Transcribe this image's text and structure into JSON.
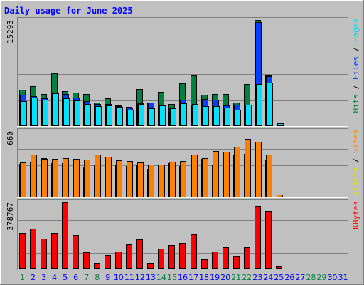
{
  "chart_data": {
    "type": "bar",
    "title": "Daily usage for June 2025",
    "days": [
      "1",
      "2",
      "3",
      "4",
      "5",
      "6",
      "7",
      "8",
      "9",
      "10",
      "11",
      "12",
      "13",
      "14",
      "15",
      "16",
      "17",
      "18",
      "19",
      "20",
      "21",
      "22",
      "23",
      "24",
      "25",
      "26",
      "27",
      "28",
      "29",
      "30",
      "31"
    ],
    "weekend_days": [
      "1",
      "7",
      "8",
      "14",
      "15",
      "21",
      "22",
      "28",
      "29"
    ],
    "panels": [
      {
        "id": "hits-files-pages",
        "ymax": 15293,
        "ymax_label": "15293",
        "legend": [
          {
            "text": "Hits",
            "color": "#008040"
          },
          {
            "text": " / ",
            "color": "#000000"
          },
          {
            "text": "Files",
            "color": "#0040ff"
          },
          {
            "text": " / ",
            "color": "#000000"
          },
          {
            "text": "Pages",
            "color": "#00e0ff"
          }
        ],
        "series": [
          {
            "name": "Hits",
            "color": "#008040",
            "values": [
              5200,
              5700,
              4500,
              7500,
              5000,
              4750,
              4500,
              3300,
              3900,
              2900,
              2700,
              5250,
              3350,
              4900,
              3100,
              6100,
              7300,
              4400,
              4500,
              4500,
              3300,
              6000,
              15293,
              7300,
              0,
              0,
              0,
              0,
              0,
              0,
              0
            ]
          },
          {
            "name": "Files",
            "color": "#0040ff",
            "values": [
              4400,
              4200,
              3900,
              4700,
              4500,
              4000,
              3500,
              3100,
              3100,
              2800,
              2600,
              3200,
              3300,
              3000,
              2500,
              3700,
              3000,
              3800,
              3700,
              2900,
              3000,
              3000,
              15000,
              7100,
              0,
              0,
              0,
              0,
              0,
              0,
              0
            ]
          },
          {
            "name": "Pages",
            "color": "#00e0ff",
            "values": [
              3500,
              4000,
              3700,
              4600,
              3900,
              3600,
              3100,
              2800,
              2900,
              2700,
              2300,
              3100,
              2500,
              2900,
              2500,
              3200,
              3100,
              2800,
              2800,
              2600,
              2300,
              3000,
              6000,
              6200,
              350,
              0,
              0,
              0,
              0,
              0,
              0
            ]
          }
        ]
      },
      {
        "id": "visits-sites",
        "ymax": 660,
        "ymax_label": "660",
        "legend": [
          {
            "text": "Visits",
            "color": "#e0e000"
          },
          {
            "text": " / ",
            "color": "#000000"
          },
          {
            "text": "Sites",
            "color": "#ff8000"
          }
        ],
        "series": [
          {
            "name": "Visits",
            "color": "#ffff00",
            "values": [
              330,
              345,
              390,
              340,
              335,
              335,
              300,
              325,
              305,
              320,
              305,
              315,
              280,
              325,
              340,
              305,
              375,
              380,
              320,
              390,
              425,
              430,
              385,
              370,
              0,
              0,
              0,
              0,
              0,
              0,
              0
            ]
          },
          {
            "name": "Sites",
            "color": "#ff8000",
            "values": [
              345,
              420,
              380,
              380,
              390,
              380,
              370,
              420,
              400,
              365,
              360,
              345,
              320,
              320,
              355,
              360,
              425,
              390,
              460,
              450,
              500,
              580,
              550,
              420,
              20,
              0,
              0,
              0,
              0,
              0,
              0
            ]
          }
        ]
      },
      {
        "id": "kbytes",
        "ymax": 378767,
        "ymax_label": "378767",
        "legend": [
          {
            "text": "KBytes",
            "color": "#ff0000"
          }
        ],
        "series": [
          {
            "name": "KBytes",
            "color": "#ff0000",
            "values": [
              200000,
              225000,
              170000,
              200000,
              378767,
              190000,
              90000,
              30000,
              75000,
              95000,
              135000,
              165000,
              30000,
              110000,
              130000,
              145000,
              195000,
              50000,
              95000,
              120000,
              70000,
              120000,
              360000,
              330000,
              8000,
              0,
              0,
              0,
              0,
              0,
              0
            ]
          }
        ]
      }
    ]
  },
  "colors": {
    "background": "#c0c0c0",
    "plot_background": "#c0c0c0",
    "title_color": "#0000ff",
    "weekday_label": "#0000ff",
    "weekend_label": "#008040",
    "gridline": "#808080"
  }
}
